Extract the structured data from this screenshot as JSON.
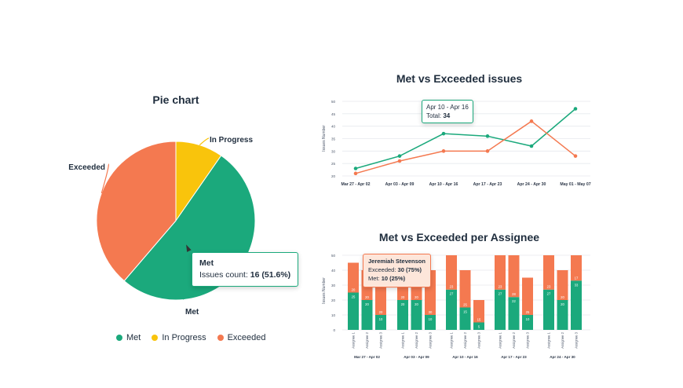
{
  "colors": {
    "met": "#1ba97c",
    "in_progress": "#f9c40c",
    "exceeded": "#f47950",
    "grid": "#e6e9ee",
    "axis_text": "#4a5568"
  },
  "pie": {
    "title": "Pie chart",
    "tooltip": {
      "label": "Met",
      "metric": "Issues count:",
      "value": "16 (51.6%)"
    },
    "legend": [
      {
        "label": "Met",
        "color": "#1ba97c"
      },
      {
        "label": "In Progress",
        "color": "#f9c40c"
      },
      {
        "label": "Exceeded",
        "color": "#f47950"
      }
    ]
  },
  "line": {
    "title": "Met vs Exceeded issues",
    "tooltip": {
      "range": "Apr 10 - Apr 16",
      "total_label": "Total:",
      "total_value": "34"
    }
  },
  "bar": {
    "title": "Met vs Exceeded per Assignee",
    "tooltip": {
      "name": "Jeremiah Stevenson",
      "exceeded_label": "Exceeded:",
      "exceeded_value": "30 (75%)",
      "met_label": "Met:",
      "met_value": "10 (25%)"
    }
  },
  "chart_data": [
    {
      "type": "pie",
      "title": "Pie chart",
      "slices": [
        {
          "label": "Met",
          "value": 16,
          "percent": 51.6,
          "color": "#1ba97c"
        },
        {
          "label": "In Progress",
          "value": 3,
          "percent": 9.7,
          "color": "#f9c40c"
        },
        {
          "label": "Exceeded",
          "value": 12,
          "percent": 38.7,
          "color": "#f47950"
        }
      ]
    },
    {
      "type": "line",
      "title": "Met vs Exceeded issues",
      "ylabel": "Issues Number",
      "categories": [
        "Mar 27 - Apr 02",
        "Apr 03 - Apr 09",
        "Apr 10 - Apr 16",
        "Apr 17 - Apr 23",
        "Apr 24 - Apr 30",
        "May 01 - May 07"
      ],
      "yticks": [
        "20",
        "25",
        "30",
        "35",
        "40",
        "45",
        "50"
      ],
      "ylim": [
        20,
        50
      ],
      "grid": true,
      "series": [
        {
          "key": "met",
          "color": "#1ba97c",
          "values": [
            23,
            28,
            37,
            36,
            32,
            47
          ]
        },
        {
          "key": "exceeded",
          "color": "#f47950",
          "values": [
            21,
            26,
            30,
            30,
            42,
            28
          ]
        }
      ]
    },
    {
      "type": "bar",
      "stacked": true,
      "title": "Met vs Exceeded per Assignee",
      "ylabel": "Issues Number",
      "yticks": [
        "0",
        "10",
        "20",
        "30",
        "40",
        "50"
      ],
      "ylim": [
        0,
        50
      ],
      "grid": true,
      "groups": [
        {
          "label": "Mar 27 - Apr 02",
          "bars": [
            {
              "label": "Assignee 1",
              "met": 25,
              "exceeded": 20
            },
            {
              "label": "Assignee 2",
              "met": 20,
              "exceeded": 20
            },
            {
              "label": "Assignee 3",
              "met": 10,
              "exceeded": 20
            }
          ]
        },
        {
          "label": "Apr 03 - Apr 09",
          "bars": [
            {
              "label": "Assignee 1",
              "met": 20,
              "exceeded": 20
            },
            {
              "label": "Assignee 2",
              "met": 20,
              "exceeded": 20
            },
            {
              "label": "Assignee 3",
              "met": 10,
              "exceeded": 30
            }
          ]
        },
        {
          "label": "Apr 10 - Apr 16",
          "bars": [
            {
              "label": "Assignee 1",
              "met": 27,
              "exceeded": 23
            },
            {
              "label": "Assignee 2",
              "met": 15,
              "exceeded": 25
            },
            {
              "label": "Assignee 3",
              "met": 5,
              "exceeded": 15
            }
          ]
        },
        {
          "label": "Apr 17 - Apr 23",
          "bars": [
            {
              "label": "Assignee 1",
              "met": 27,
              "exceeded": 23
            },
            {
              "label": "Assignee 2",
              "met": 22,
              "exceeded": 28
            },
            {
              "label": "Assignee 3",
              "met": 10,
              "exceeded": 25
            }
          ]
        },
        {
          "label": "Apr 24 - Apr 30",
          "bars": [
            {
              "label": "Assignee 1",
              "met": 27,
              "exceeded": 23
            },
            {
              "label": "Assignee 2",
              "met": 20,
              "exceeded": 20
            },
            {
              "label": "Assignee 3",
              "met": 33,
              "exceeded": 17
            }
          ]
        }
      ]
    }
  ]
}
